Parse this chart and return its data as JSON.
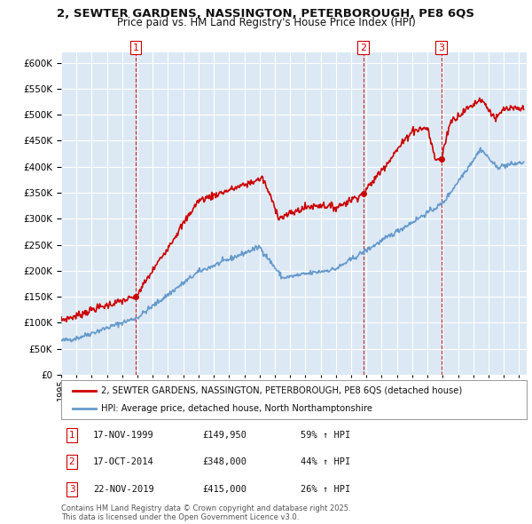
{
  "title_line1": "2, SEWTER GARDENS, NASSINGTON, PETERBOROUGH, PE8 6QS",
  "title_line2": "Price paid vs. HM Land Registry's House Price Index (HPI)",
  "background_color": "#ffffff",
  "plot_bg_color": "#dce9f5",
  "grid_color": "#ffffff",
  "hpi_color": "#6699cc",
  "price_color": "#cc0000",
  "sale_color": "#cc0000",
  "dashed_line_color": "#cc0000",
  "legend_label_price": "2, SEWTER GARDENS, NASSINGTON, PETERBOROUGH, PE8 6QS (detached house)",
  "legend_label_hpi": "HPI: Average price, detached house, North Northamptonshire",
  "sale1_date": "17-NOV-1999",
  "sale1_price": 149950,
  "sale1_pct": "59% ↑ HPI",
  "sale2_date": "17-OCT-2014",
  "sale2_price": 348000,
  "sale2_pct": "44% ↑ HPI",
  "sale3_date": "22-NOV-2019",
  "sale3_price": 415000,
  "sale3_pct": "26% ↑ HPI",
  "footer": "Contains HM Land Registry data © Crown copyright and database right 2025.\nThis data is licensed under the Open Government Licence v3.0.",
  "sale1_x": 1999.88,
  "sale2_x": 2014.79,
  "sale3_x": 2019.9,
  "ylim": [
    0,
    620000
  ],
  "yticks": [
    0,
    50000,
    100000,
    150000,
    200000,
    250000,
    300000,
    350000,
    400000,
    450000,
    500000,
    550000,
    600000
  ]
}
